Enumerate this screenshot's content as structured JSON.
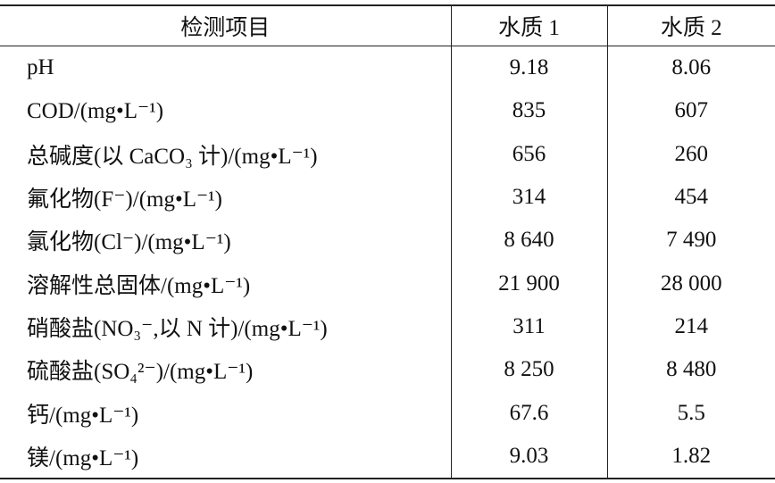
{
  "table": {
    "header": [
      "检测项目",
      "水质 1",
      "水质 2"
    ],
    "rows": [
      [
        "pH",
        "9.18",
        "8.06"
      ],
      [
        "COD/(mg•L⁻¹)",
        "835",
        "607"
      ],
      [
        "总碱度(以 CaCO₃ 计)/(mg•L⁻¹)",
        "656",
        "260"
      ],
      [
        "氟化物(F⁻)/(mg•L⁻¹)",
        "314",
        "454"
      ],
      [
        "氯化物(Cl⁻)/(mg•L⁻¹)",
        "8 640",
        "7 490"
      ],
      [
        "溶解性总固体/(mg•L⁻¹)",
        "21 900",
        "28 000"
      ],
      [
        "硝酸盐(NO₃⁻,以 N 计)/(mg•L⁻¹)",
        "311",
        "214"
      ],
      [
        "硫酸盐(SO₄²⁻)/(mg•L⁻¹)",
        "8 250",
        "8 480"
      ],
      [
        "钙/(mg•L⁻¹)",
        "67.6",
        "5.5"
      ],
      [
        "镁/(mg•L⁻¹)",
        "9.03",
        "1.82"
      ]
    ]
  }
}
